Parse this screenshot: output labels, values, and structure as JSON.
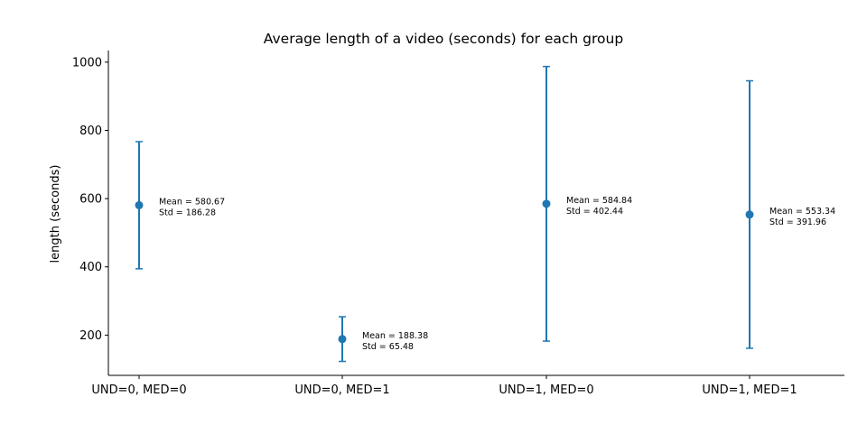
{
  "chart_data": {
    "type": "errorbar",
    "title": "Average length of a video (seconds) for each group",
    "xlabel": "",
    "ylabel": "length (seconds)",
    "ylim": [
      82,
      1034
    ],
    "yticks": [
      200,
      400,
      600,
      800,
      1000
    ],
    "grid": false,
    "categories": [
      "UND=0, MED=0",
      "UND=0, MED=1",
      "UND=1, MED=0",
      "UND=1, MED=1"
    ],
    "series": [
      {
        "color": "#1f77b4",
        "means": [
          580.67,
          188.38,
          584.84,
          553.34
        ],
        "stds": [
          186.28,
          65.48,
          402.44,
          391.96
        ],
        "annotations": [
          [
            "Mean = 580.67",
            "Std = 186.28"
          ],
          [
            "Mean = 188.38",
            "Std = 65.48"
          ],
          [
            "Mean = 584.84",
            "Std = 402.44"
          ],
          [
            "Mean = 553.34",
            "Std = 391.96"
          ]
        ]
      }
    ]
  }
}
